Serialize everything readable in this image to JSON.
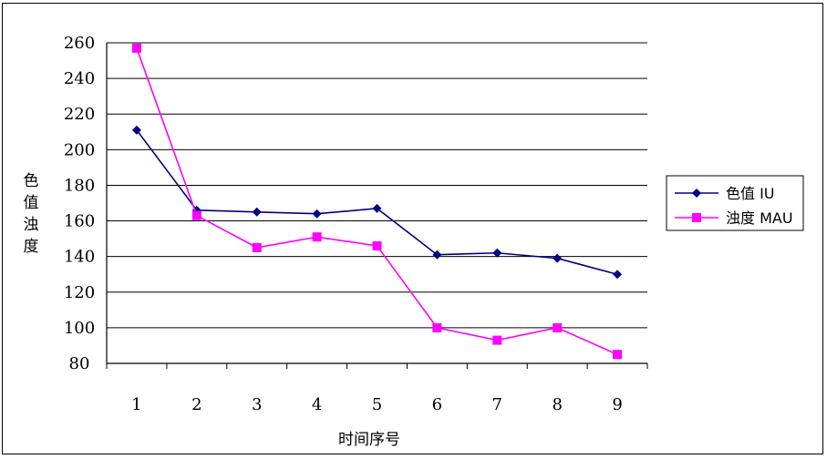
{
  "chart_data": {
    "type": "line",
    "title": "",
    "xlabel": "时间序号",
    "ylabel": "色值浊度",
    "categories": [
      "1",
      "2",
      "3",
      "4",
      "5",
      "6",
      "7",
      "8",
      "9"
    ],
    "ylim": [
      80,
      260
    ],
    "yticks": [
      80,
      100,
      120,
      140,
      160,
      180,
      200,
      220,
      240,
      260
    ],
    "grid": true,
    "legend_position": "right",
    "series": [
      {
        "name": "色值 IU",
        "color": "#000080",
        "marker": "diamond",
        "values": [
          211,
          166,
          165,
          164,
          167,
          141,
          142,
          139,
          130
        ]
      },
      {
        "name": "浊度 MAU",
        "color": "#FF00FF",
        "marker": "square",
        "values": [
          257,
          163,
          145,
          151,
          146,
          100,
          93,
          100,
          85
        ]
      }
    ]
  }
}
